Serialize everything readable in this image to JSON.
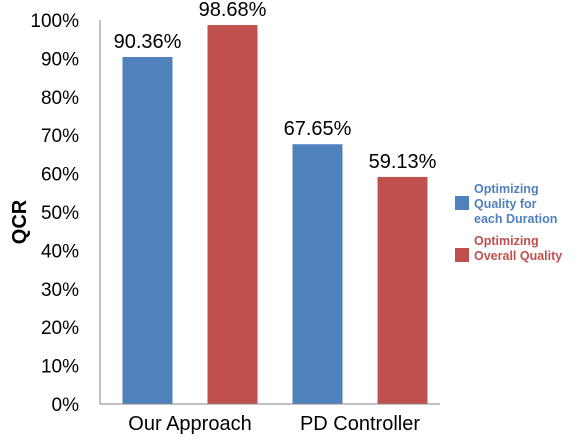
{
  "chart_data": {
    "type": "bar",
    "title": "",
    "xlabel": "",
    "ylabel": "QCR",
    "ylim": [
      0,
      100
    ],
    "yticks": [
      "0%",
      "10%",
      "20%",
      "30%",
      "40%",
      "50%",
      "60%",
      "70%",
      "80%",
      "90%",
      "100%"
    ],
    "categories": [
      "Our Approach",
      "PD Controller"
    ],
    "grid": false,
    "legend_position": "right",
    "series": [
      {
        "name_lines": [
          "Optimizing",
          "Quality for",
          "each Duration"
        ],
        "color": "#4F81BD",
        "values": [
          90.36,
          67.65
        ],
        "labels": [
          "90.36%",
          "67.65%"
        ]
      },
      {
        "name_lines": [
          "Optimizing",
          "Overall Quality"
        ],
        "color": "#C0504D",
        "values": [
          98.68,
          59.13
        ],
        "labels": [
          "98.68%",
          "59.13%"
        ]
      }
    ]
  }
}
